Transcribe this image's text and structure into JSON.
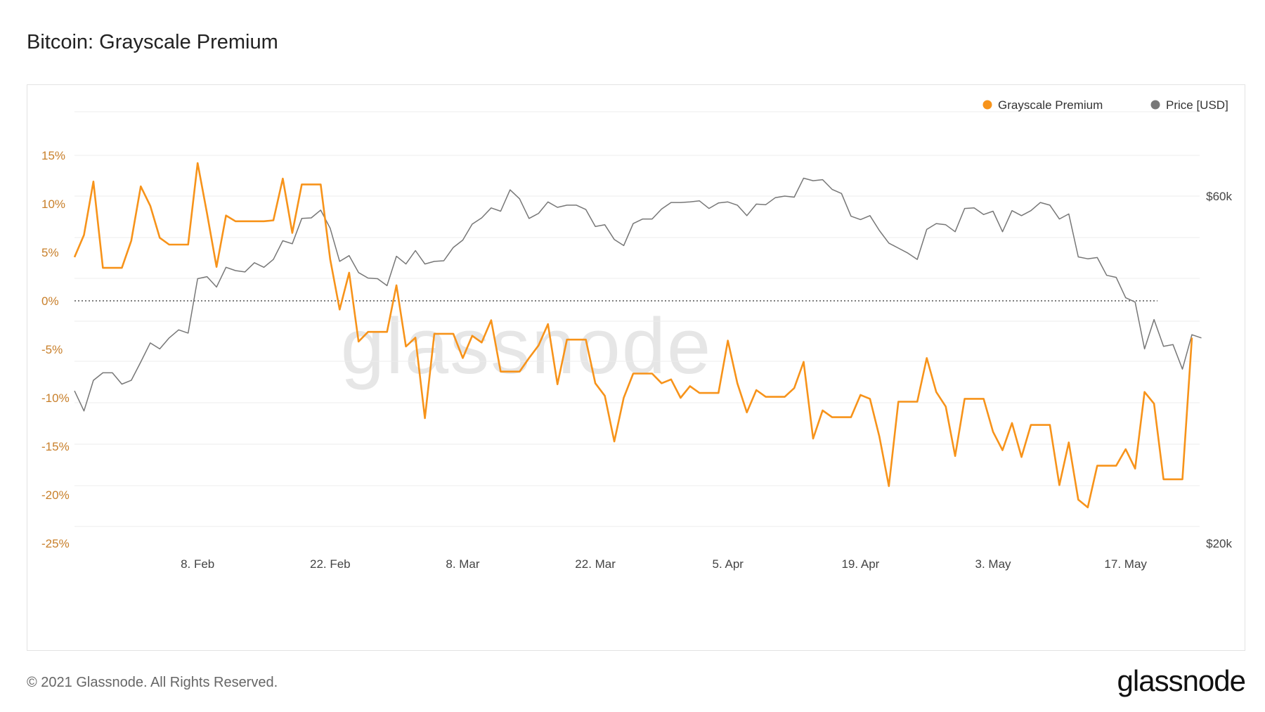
{
  "page": {
    "title": "Bitcoin: Grayscale Premium",
    "copyright": "© 2021 Glassnode. All Rights Reserved.",
    "brand": "glassnode",
    "watermark": "glassnode"
  },
  "colors": {
    "premium": "#f7931a",
    "price": "#777777",
    "premium_axis": "#c87f2a",
    "grid": "#ececec",
    "zero_line": "#333333",
    "watermark": "#e6e6e6"
  },
  "chart_data": {
    "type": "line",
    "title": "Bitcoin: Grayscale Premium",
    "legend_position": "top-right",
    "grid": true,
    "x_ticks": [
      "8. Feb",
      "22. Feb",
      "8. Mar",
      "22. Mar",
      "5. Apr",
      "19. Apr",
      "3. May",
      "17. May"
    ],
    "x_tick_dates": [
      "2021-02-08",
      "2021-02-22",
      "2021-03-08",
      "2021-03-22",
      "2021-04-05",
      "2021-04-19",
      "2021-05-03",
      "2021-05-17"
    ],
    "x_range": [
      "2021-01-26",
      "2021-05-24"
    ],
    "y_left": {
      "ticks": [
        "15%",
        "10%",
        "5%",
        "0%",
        "-5%",
        "-10%",
        "-15%",
        "-20%",
        "-25%"
      ],
      "tick_values": [
        15,
        10,
        5,
        0,
        -5,
        -10,
        -15,
        -20,
        -25
      ],
      "range": [
        -25,
        20
      ]
    },
    "y_right": {
      "ticks": [
        "$60k",
        "$20k"
      ],
      "tick_values": [
        60000,
        20000
      ],
      "range": [
        20000,
        60000
      ],
      "scale": "log"
    },
    "series": [
      {
        "name": "Grayscale Premium",
        "axis": "left",
        "points": [
          [
            "2021-01-26",
            4.5
          ],
          [
            "2021-01-27",
            6.8
          ],
          [
            "2021-01-28",
            12.3
          ],
          [
            "2021-01-29",
            3.4
          ],
          [
            "2021-01-30",
            3.4
          ],
          [
            "2021-01-31",
            3.4
          ],
          [
            "2021-02-01",
            6.2
          ],
          [
            "2021-02-02",
            11.8
          ],
          [
            "2021-02-03",
            9.8
          ],
          [
            "2021-02-04",
            6.5
          ],
          [
            "2021-02-05",
            5.8
          ],
          [
            "2021-02-06",
            5.8
          ],
          [
            "2021-02-07",
            5.8
          ],
          [
            "2021-02-08",
            14.2
          ],
          [
            "2021-02-09",
            9.0
          ],
          [
            "2021-02-10",
            3.5
          ],
          [
            "2021-02-11",
            8.8
          ],
          [
            "2021-02-12",
            8.2
          ],
          [
            "2021-02-13",
            8.2
          ],
          [
            "2021-02-14",
            8.2
          ],
          [
            "2021-02-15",
            8.2
          ],
          [
            "2021-02-16",
            8.3
          ],
          [
            "2021-02-17",
            12.6
          ],
          [
            "2021-02-18",
            7.0
          ],
          [
            "2021-02-19",
            12.0
          ],
          [
            "2021-02-20",
            12.0
          ],
          [
            "2021-02-21",
            12.0
          ],
          [
            "2021-02-22",
            4.3
          ],
          [
            "2021-02-23",
            -0.9
          ],
          [
            "2021-02-24",
            2.9
          ],
          [
            "2021-02-25",
            -4.2
          ],
          [
            "2021-02-26",
            -3.2
          ],
          [
            "2021-02-27",
            -3.2
          ],
          [
            "2021-02-28",
            -3.2
          ],
          [
            "2021-03-01",
            1.6
          ],
          [
            "2021-03-02",
            -4.7
          ],
          [
            "2021-03-03",
            -3.8
          ],
          [
            "2021-03-04",
            -12.1
          ],
          [
            "2021-03-05",
            -3.4
          ],
          [
            "2021-03-06",
            -3.4
          ],
          [
            "2021-03-07",
            -3.4
          ],
          [
            "2021-03-08",
            -5.9
          ],
          [
            "2021-03-09",
            -3.6
          ],
          [
            "2021-03-10",
            -4.3
          ],
          [
            "2021-03-11",
            -2.0
          ],
          [
            "2021-03-12",
            -7.3
          ],
          [
            "2021-03-13",
            -7.3
          ],
          [
            "2021-03-14",
            -7.3
          ],
          [
            "2021-03-15",
            -5.9
          ],
          [
            "2021-03-16",
            -4.6
          ],
          [
            "2021-03-17",
            -2.4
          ],
          [
            "2021-03-18",
            -8.6
          ],
          [
            "2021-03-19",
            -4.0
          ],
          [
            "2021-03-20",
            -4.0
          ],
          [
            "2021-03-21",
            -4.0
          ],
          [
            "2021-03-22",
            -8.5
          ],
          [
            "2021-03-23",
            -9.8
          ],
          [
            "2021-03-24",
            -14.5
          ],
          [
            "2021-03-25",
            -10.0
          ],
          [
            "2021-03-26",
            -7.5
          ],
          [
            "2021-03-27",
            -7.5
          ],
          [
            "2021-03-28",
            -7.5
          ],
          [
            "2021-03-29",
            -8.5
          ],
          [
            "2021-03-30",
            -8.1
          ],
          [
            "2021-03-31",
            -10.0
          ],
          [
            "2021-04-01",
            -8.8
          ],
          [
            "2021-04-02",
            -9.5
          ],
          [
            "2021-04-03",
            -9.5
          ],
          [
            "2021-04-04",
            -9.5
          ],
          [
            "2021-04-05",
            -4.1
          ],
          [
            "2021-04-06",
            -8.5
          ],
          [
            "2021-04-07",
            -11.5
          ],
          [
            "2021-04-08",
            -9.2
          ],
          [
            "2021-04-09",
            -9.9
          ],
          [
            "2021-04-10",
            -9.9
          ],
          [
            "2021-04-11",
            -9.9
          ],
          [
            "2021-04-12",
            -9.0
          ],
          [
            "2021-04-13",
            -6.3
          ],
          [
            "2021-04-14",
            -14.2
          ],
          [
            "2021-04-15",
            -11.3
          ],
          [
            "2021-04-16",
            -12.0
          ],
          [
            "2021-04-17",
            -12.0
          ],
          [
            "2021-04-18",
            -12.0
          ],
          [
            "2021-04-19",
            -9.7
          ],
          [
            "2021-04-20",
            -10.1
          ],
          [
            "2021-04-21",
            -14.0
          ],
          [
            "2021-04-22",
            -19.1
          ],
          [
            "2021-04-23",
            -10.4
          ],
          [
            "2021-04-24",
            -10.4
          ],
          [
            "2021-04-25",
            -10.4
          ],
          [
            "2021-04-26",
            -5.9
          ],
          [
            "2021-04-27",
            -9.4
          ],
          [
            "2021-04-28",
            -10.9
          ],
          [
            "2021-04-29",
            -16.0
          ],
          [
            "2021-04-30",
            -10.1
          ],
          [
            "2021-05-01",
            -10.1
          ],
          [
            "2021-05-02",
            -10.1
          ],
          [
            "2021-05-03",
            -13.5
          ],
          [
            "2021-05-04",
            -15.4
          ],
          [
            "2021-05-05",
            -12.6
          ],
          [
            "2021-05-06",
            -16.1
          ],
          [
            "2021-05-07",
            -12.8
          ],
          [
            "2021-05-08",
            -12.8
          ],
          [
            "2021-05-09",
            -12.8
          ],
          [
            "2021-05-10",
            -19.0
          ],
          [
            "2021-05-11",
            -14.6
          ],
          [
            "2021-05-12",
            -20.5
          ],
          [
            "2021-05-13",
            -21.3
          ],
          [
            "2021-05-14",
            -17.0
          ],
          [
            "2021-05-15",
            -17.0
          ],
          [
            "2021-05-16",
            -17.0
          ],
          [
            "2021-05-17",
            -15.3
          ],
          [
            "2021-05-18",
            -17.3
          ],
          [
            "2021-05-19",
            -9.4
          ],
          [
            "2021-05-20",
            -10.6
          ],
          [
            "2021-05-21",
            -18.4
          ],
          [
            "2021-05-22",
            -18.4
          ],
          [
            "2021-05-23",
            -18.4
          ],
          [
            "2021-05-24",
            -3.8
          ]
        ]
      },
      {
        "name": "Price [USD]",
        "axis": "right",
        "points": [
          [
            "2021-01-26",
            32400
          ],
          [
            "2021-01-27",
            30400
          ],
          [
            "2021-01-28",
            33500
          ],
          [
            "2021-01-29",
            34300
          ],
          [
            "2021-01-30",
            34300
          ],
          [
            "2021-01-31",
            33100
          ],
          [
            "2021-02-01",
            33500
          ],
          [
            "2021-02-02",
            35500
          ],
          [
            "2021-02-03",
            37700
          ],
          [
            "2021-02-04",
            37000
          ],
          [
            "2021-02-05",
            38300
          ],
          [
            "2021-02-06",
            39300
          ],
          [
            "2021-02-07",
            38900
          ],
          [
            "2021-02-08",
            46200
          ],
          [
            "2021-02-09",
            46500
          ],
          [
            "2021-02-10",
            45000
          ],
          [
            "2021-02-11",
            47900
          ],
          [
            "2021-02-12",
            47400
          ],
          [
            "2021-02-13",
            47200
          ],
          [
            "2021-02-14",
            48600
          ],
          [
            "2021-02-15",
            47900
          ],
          [
            "2021-02-16",
            49100
          ],
          [
            "2021-02-17",
            52100
          ],
          [
            "2021-02-18",
            51600
          ],
          [
            "2021-02-19",
            55900
          ],
          [
            "2021-02-20",
            56000
          ],
          [
            "2021-02-21",
            57400
          ],
          [
            "2021-02-22",
            54200
          ],
          [
            "2021-02-23",
            48800
          ],
          [
            "2021-02-24",
            49700
          ],
          [
            "2021-02-25",
            47100
          ],
          [
            "2021-02-26",
            46300
          ],
          [
            "2021-02-27",
            46200
          ],
          [
            "2021-02-28",
            45200
          ],
          [
            "2021-03-01",
            49600
          ],
          [
            "2021-03-02",
            48400
          ],
          [
            "2021-03-03",
            50500
          ],
          [
            "2021-03-04",
            48400
          ],
          [
            "2021-03-05",
            48800
          ],
          [
            "2021-03-06",
            48900
          ],
          [
            "2021-03-07",
            51000
          ],
          [
            "2021-03-08",
            52200
          ],
          [
            "2021-03-09",
            54900
          ],
          [
            "2021-03-10",
            56000
          ],
          [
            "2021-03-11",
            57800
          ],
          [
            "2021-03-12",
            57200
          ],
          [
            "2021-03-13",
            61200
          ],
          [
            "2021-03-14",
            59500
          ],
          [
            "2021-03-15",
            55900
          ],
          [
            "2021-03-16",
            56800
          ],
          [
            "2021-03-17",
            58900
          ],
          [
            "2021-03-18",
            57900
          ],
          [
            "2021-03-19",
            58300
          ],
          [
            "2021-03-20",
            58300
          ],
          [
            "2021-03-21",
            57500
          ],
          [
            "2021-03-22",
            54500
          ],
          [
            "2021-03-23",
            54800
          ],
          [
            "2021-03-24",
            52300
          ],
          [
            "2021-03-25",
            51300
          ],
          [
            "2021-03-26",
            55000
          ],
          [
            "2021-03-27",
            55800
          ],
          [
            "2021-03-28",
            55800
          ],
          [
            "2021-03-29",
            57600
          ],
          [
            "2021-03-30",
            58800
          ],
          [
            "2021-03-31",
            58800
          ],
          [
            "2021-04-01",
            58900
          ],
          [
            "2021-04-02",
            59100
          ],
          [
            "2021-04-03",
            57700
          ],
          [
            "2021-04-04",
            58700
          ],
          [
            "2021-04-05",
            58900
          ],
          [
            "2021-04-06",
            58300
          ],
          [
            "2021-04-07",
            56400
          ],
          [
            "2021-04-08",
            58500
          ],
          [
            "2021-04-09",
            58400
          ],
          [
            "2021-04-10",
            59700
          ],
          [
            "2021-04-11",
            60000
          ],
          [
            "2021-04-12",
            59800
          ],
          [
            "2021-04-13",
            63500
          ],
          [
            "2021-04-14",
            63000
          ],
          [
            "2021-04-15",
            63200
          ],
          [
            "2021-04-16",
            61300
          ],
          [
            "2021-04-17",
            60500
          ],
          [
            "2021-04-18",
            56300
          ],
          [
            "2021-04-19",
            55700
          ],
          [
            "2021-04-20",
            56400
          ],
          [
            "2021-04-21",
            53800
          ],
          [
            "2021-04-22",
            51700
          ],
          [
            "2021-04-23",
            50900
          ],
          [
            "2021-04-24",
            50100
          ],
          [
            "2021-04-25",
            49100
          ],
          [
            "2021-04-26",
            54000
          ],
          [
            "2021-04-27",
            55000
          ],
          [
            "2021-04-28",
            54800
          ],
          [
            "2021-04-29",
            53600
          ],
          [
            "2021-04-30",
            57700
          ],
          [
            "2021-05-01",
            57800
          ],
          [
            "2021-05-02",
            56600
          ],
          [
            "2021-05-03",
            57200
          ],
          [
            "2021-05-04",
            53600
          ],
          [
            "2021-05-05",
            57300
          ],
          [
            "2021-05-06",
            56400
          ],
          [
            "2021-05-07",
            57300
          ],
          [
            "2021-05-08",
            58800
          ],
          [
            "2021-05-09",
            58300
          ],
          [
            "2021-05-10",
            55800
          ],
          [
            "2021-05-11",
            56700
          ],
          [
            "2021-05-12",
            49500
          ],
          [
            "2021-05-13",
            49200
          ],
          [
            "2021-05-14",
            49400
          ],
          [
            "2021-05-15",
            46700
          ],
          [
            "2021-05-16",
            46400
          ],
          [
            "2021-05-17",
            43500
          ],
          [
            "2021-05-18",
            42900
          ],
          [
            "2021-05-19",
            37000
          ],
          [
            "2021-05-20",
            40600
          ],
          [
            "2021-05-21",
            37300
          ],
          [
            "2021-05-22",
            37500
          ],
          [
            "2021-05-23",
            34700
          ],
          [
            "2021-05-24",
            38700
          ],
          [
            "2021-05-25",
            38300
          ]
        ]
      }
    ]
  }
}
